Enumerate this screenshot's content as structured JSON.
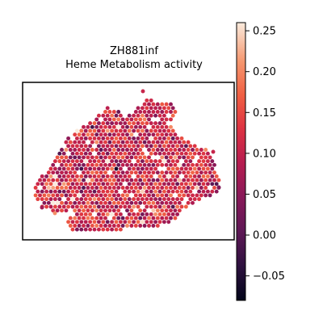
{
  "chart_data": {
    "type": "scatter",
    "title_line1": "ZH881inf",
    "title_line2": "Heme Metabolism activity",
    "xlabel": "",
    "ylabel": "",
    "grid": false,
    "colorbar": {
      "colormap": "rocket",
      "range": [
        -0.08,
        0.26
      ],
      "ticks": [
        {
          "value": 0.25,
          "label": "0.25"
        },
        {
          "value": 0.2,
          "label": "0.20"
        },
        {
          "value": 0.15,
          "label": "0.15"
        },
        {
          "value": 0.1,
          "label": "0.10"
        },
        {
          "value": 0.05,
          "label": "0.05"
        },
        {
          "value": 0.0,
          "label": "0.00"
        },
        {
          "value": -0.05,
          "label": "−0.05"
        }
      ]
    },
    "spot_distribution": {
      "mean": 0.11,
      "spread": 0.045
    }
  }
}
